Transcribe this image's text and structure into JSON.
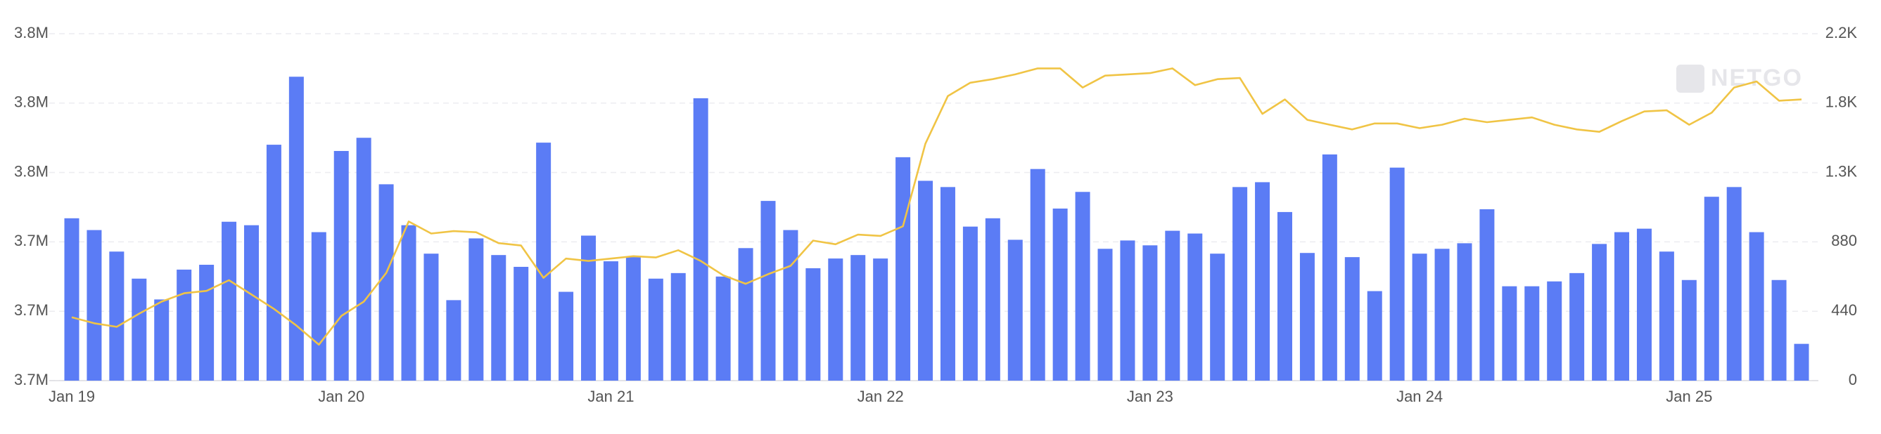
{
  "chart_data": {
    "type": "bar",
    "watermark": "NETGO",
    "categories": [
      "Jan 19",
      null,
      null,
      null,
      null,
      null,
      null,
      null,
      null,
      null,
      null,
      null,
      "Jan 20",
      null,
      null,
      null,
      null,
      null,
      null,
      null,
      null,
      null,
      null,
      null,
      "Jan 21",
      null,
      null,
      null,
      null,
      null,
      null,
      null,
      null,
      null,
      null,
      null,
      "Jan 22",
      null,
      null,
      null,
      null,
      null,
      null,
      null,
      null,
      null,
      null,
      null,
      "Jan 23",
      null,
      null,
      null,
      null,
      null,
      null,
      null,
      null,
      null,
      null,
      null,
      "Jan 24",
      null,
      null,
      null,
      null,
      null,
      null,
      null,
      null,
      null,
      null,
      null,
      "Jan 25",
      null,
      null,
      null,
      null,
      null
    ],
    "series": [
      {
        "type": "bar",
        "color": "#5b7cf5",
        "values": [
          3743400,
          3741700,
          3738600,
          3734700,
          3731700,
          3736000,
          3736700,
          3742900,
          3742400,
          3754000,
          3763800,
          3741400,
          3753100,
          3755000,
          3748300,
          3742400,
          3738300,
          3731600,
          3740500,
          3738100,
          3736400,
          3754300,
          3732800,
          3740900,
          3737200,
          3737800,
          3734700,
          3735500,
          3760700,
          3735000,
          3739100,
          3745900,
          3741700,
          3736200,
          3737600,
          3738100,
          3737600,
          3752200,
          3748800,
          3747900,
          3742200,
          3743400,
          3740300,
          3750500,
          3744800,
          3747200,
          3739000,
          3740200,
          3739500,
          3741600,
          3741200,
          3738300,
          3747900,
          3748600,
          3744300,
          3738400,
          3752600,
          3737800,
          3732900,
          3750700,
          3738300,
          3739000,
          3739800,
          3744700,
          3733600,
          3733600,
          3734300,
          3735500,
          3739700,
          3741400,
          3741900,
          3738600,
          3734500,
          3746500,
          3747900,
          3741400,
          3734500,
          3725300
        ]
      },
      {
        "type": "line",
        "color": "#f0c445",
        "axis": "y2",
        "values": [
          402,
          364,
          341,
          425,
          501,
          554,
          569,
          637,
          546,
          455,
          349,
          228,
          410,
          501,
          683,
          1009,
          933,
          948,
          941,
          872,
          857,
          652,
          774,
          759,
          774,
          789,
          781,
          827,
          759,
          668,
          614,
          675,
          728,
          888,
          865,
          926,
          918,
          979,
          1502,
          1805,
          1889,
          1912,
          1942,
          1980,
          1980,
          1859,
          1934,
          1942,
          1950,
          1980,
          1874,
          1912,
          1919,
          1692,
          1783,
          1654,
          1623,
          1593,
          1631,
          1631,
          1601,
          1623,
          1661,
          1639,
          1654,
          1669,
          1623,
          1593,
          1578,
          1646,
          1707,
          1714,
          1623,
          1699,
          1859,
          1897,
          1775,
          1783
        ]
      }
    ],
    "ylim": [
      3720000,
      3770000
    ],
    "yticks": [
      {
        "value": 3720000,
        "label": "3.7M"
      },
      {
        "value": 3730000,
        "label": "3.7M"
      },
      {
        "value": 3740000,
        "label": "3.7M"
      },
      {
        "value": 3750000,
        "label": "3.8M"
      },
      {
        "value": 3760000,
        "label": "3.8M"
      },
      {
        "value": 3770000,
        "label": "3.8M"
      }
    ],
    "y2lim": [
      0,
      2200
    ],
    "y2ticks": [
      0,
      440,
      880,
      {
        "value": 1320,
        "label": "1.3K"
      },
      {
        "value": 1760,
        "label": "1.8K"
      },
      {
        "value": 2200,
        "label": "2.2K"
      }
    ],
    "grid": true
  }
}
